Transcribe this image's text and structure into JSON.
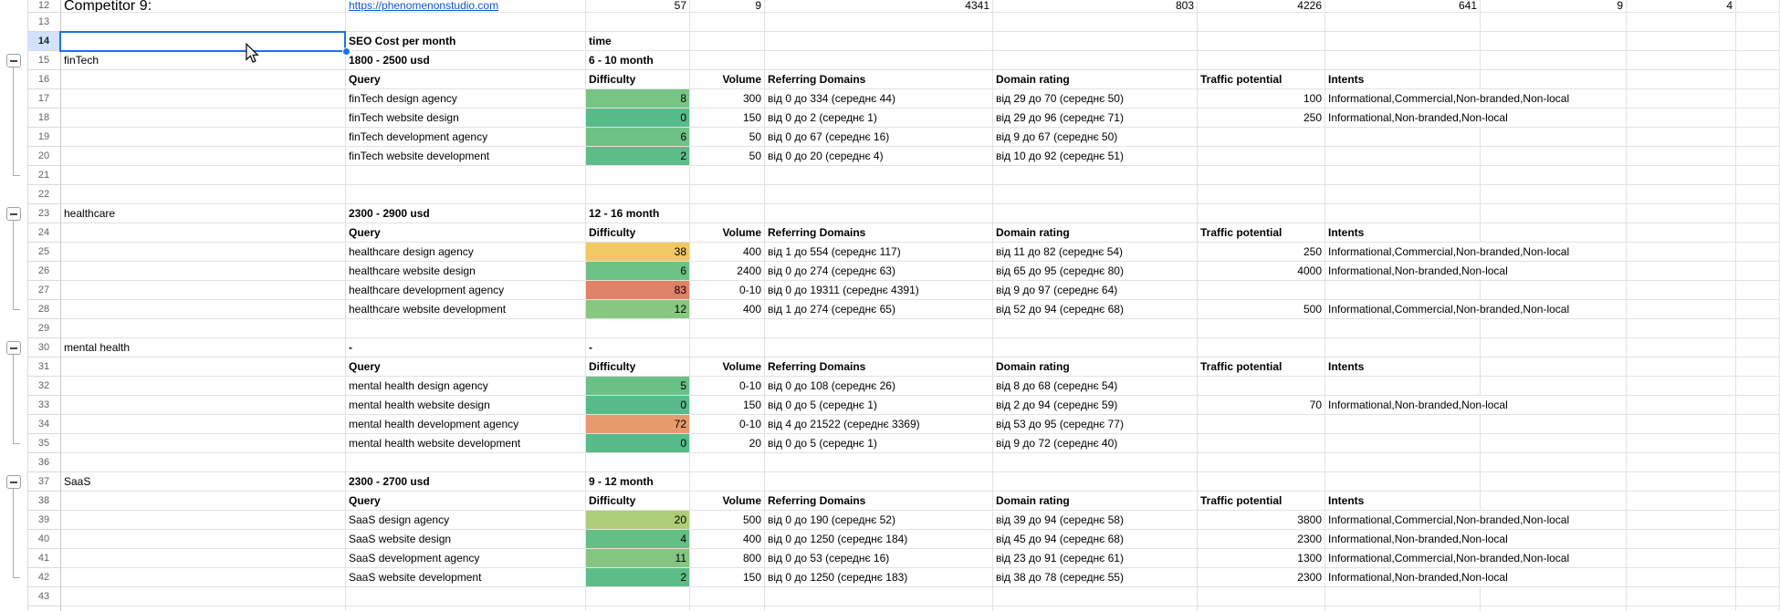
{
  "sheet": {
    "selected_row": 14,
    "selection": {
      "row": 14,
      "col": "a"
    },
    "colors": {
      "selection_blue": "#1a73e8",
      "selected_row_header_bg": "#d3e3fd",
      "link": "#1155cc",
      "gridline": "#e2e2e2",
      "difficulty_low": "#57bb8a",
      "difficulty_mid": "#f1c863",
      "difficulty_high": "#e18165"
    },
    "groups": [
      {
        "start": 15,
        "end": 21
      },
      {
        "start": 23,
        "end": 28
      },
      {
        "start": 30,
        "end": 35
      },
      {
        "start": 37,
        "end": 42
      }
    ],
    "rows": [
      {
        "n": 12,
        "clip": true,
        "cells": [
          {
            "c": "a",
            "t": "Competitor 9:",
            "lg": 1
          },
          {
            "c": "b",
            "t": "https://phenomenonstudio.com",
            "ln": 1
          },
          {
            "c": "c",
            "t": "57",
            "r": 1
          },
          {
            "c": "d",
            "t": "9",
            "r": 1
          },
          {
            "c": "e",
            "t": "4341",
            "r": 1
          },
          {
            "c": "f",
            "t": "803",
            "r": 1
          },
          {
            "c": "g",
            "t": "4226",
            "r": 1
          },
          {
            "c": "h",
            "t": "641",
            "r": 1
          },
          {
            "c": "i",
            "t": "9",
            "r": 1
          },
          {
            "c": "j",
            "t": "4",
            "r": 1
          }
        ]
      },
      {
        "n": 13,
        "cells": []
      },
      {
        "n": 14,
        "cells": [
          {
            "c": "b",
            "t": "SEO Cost per month",
            "b": 1
          },
          {
            "c": "c",
            "t": "time",
            "b": 1
          }
        ]
      },
      {
        "n": 15,
        "cells": [
          {
            "c": "a",
            "t": "finTech"
          },
          {
            "c": "b",
            "t": "1800 - 2500 usd",
            "b": 1
          },
          {
            "c": "c",
            "t": "6 - 10 month",
            "b": 1
          }
        ]
      },
      {
        "n": 16,
        "cells": [
          {
            "c": "b",
            "t": "Query",
            "b": 1
          },
          {
            "c": "c",
            "t": "Difficulty",
            "b": 1
          },
          {
            "c": "d",
            "t": "Volume",
            "b": 1,
            "r": 1
          },
          {
            "c": "e",
            "t": "Referring Domains",
            "b": 1
          },
          {
            "c": "f",
            "t": "Domain rating",
            "b": 1
          },
          {
            "c": "g",
            "t": "Traffic potential",
            "b": 1
          },
          {
            "c": "h",
            "t": "Intents",
            "b": 1
          }
        ]
      },
      {
        "n": 17,
        "cells": [
          {
            "c": "b",
            "t": "finTech design agency"
          },
          {
            "c": "c",
            "t": "8",
            "r": 1,
            "bg": "#76c484"
          },
          {
            "c": "d",
            "t": "300",
            "r": 1
          },
          {
            "c": "e",
            "t": "від 0 до 334 (середнє 44)"
          },
          {
            "c": "f",
            "t": "від 29 до 70 (середнє 50)"
          },
          {
            "c": "g",
            "t": "100",
            "r": 1
          },
          {
            "c": "h",
            "t": "Informational,Commercial,Non-branded,Non-local",
            "sp": 2
          }
        ]
      },
      {
        "n": 18,
        "cells": [
          {
            "c": "b",
            "t": "finTech website design"
          },
          {
            "c": "c",
            "t": "0",
            "r": 1,
            "bg": "#57bb8a"
          },
          {
            "c": "d",
            "t": "150",
            "r": 1
          },
          {
            "c": "e",
            "t": "від 0 до 2 (середнє 1)"
          },
          {
            "c": "f",
            "t": "від 29 до 96 (середнє 71)"
          },
          {
            "c": "g",
            "t": "250",
            "r": 1
          },
          {
            "c": "h",
            "t": "Informational,Non-branded,Non-local",
            "sp": 2
          }
        ]
      },
      {
        "n": 19,
        "cells": [
          {
            "c": "b",
            "t": "finTech development agency"
          },
          {
            "c": "c",
            "t": "6",
            "r": 1,
            "bg": "#6fc285"
          },
          {
            "c": "d",
            "t": "50",
            "r": 1
          },
          {
            "c": "e",
            "t": "від 0 до 67 (середнє 16)"
          },
          {
            "c": "f",
            "t": "від 9 до 67 (середнє 50)"
          }
        ]
      },
      {
        "n": 20,
        "cells": [
          {
            "c": "b",
            "t": "finTech website development"
          },
          {
            "c": "c",
            "t": "2",
            "r": 1,
            "bg": "#5dbd88"
          },
          {
            "c": "d",
            "t": "50",
            "r": 1
          },
          {
            "c": "e",
            "t": "від 0 до 20 (середнє 4)"
          },
          {
            "c": "f",
            "t": "від 10 до 92 (середнє 51)"
          }
        ]
      },
      {
        "n": 21,
        "cells": []
      },
      {
        "n": 22,
        "cells": []
      },
      {
        "n": 23,
        "cells": [
          {
            "c": "a",
            "t": "healthcare"
          },
          {
            "c": "b",
            "t": "2300 - 2900 usd",
            "b": 1
          },
          {
            "c": "c",
            "t": "12 - 16 month",
            "b": 1
          }
        ]
      },
      {
        "n": 24,
        "cells": [
          {
            "c": "b",
            "t": "Query",
            "b": 1
          },
          {
            "c": "c",
            "t": "Difficulty",
            "b": 1
          },
          {
            "c": "d",
            "t": "Volume",
            "b": 1,
            "r": 1
          },
          {
            "c": "e",
            "t": "Referring Domains",
            "b": 1
          },
          {
            "c": "f",
            "t": "Domain rating",
            "b": 1
          },
          {
            "c": "g",
            "t": "Traffic potential",
            "b": 1
          },
          {
            "c": "h",
            "t": "Intents",
            "b": 1
          }
        ]
      },
      {
        "n": 25,
        "cells": [
          {
            "c": "b",
            "t": "healthcare design agency"
          },
          {
            "c": "c",
            "t": "38",
            "r": 1,
            "bg": "#f1c863"
          },
          {
            "c": "d",
            "t": "400",
            "r": 1
          },
          {
            "c": "e",
            "t": "від 1 до 554 (середнє 117)"
          },
          {
            "c": "f",
            "t": "від 11 до 82 (середнє 54)"
          },
          {
            "c": "g",
            "t": "250",
            "r": 1
          },
          {
            "c": "h",
            "t": "Informational,Commercial,Non-branded,Non-local",
            "sp": 2
          }
        ]
      },
      {
        "n": 26,
        "cells": [
          {
            "c": "b",
            "t": "healthcare website design"
          },
          {
            "c": "c",
            "t": "6",
            "r": 1,
            "bg": "#6fc285"
          },
          {
            "c": "d",
            "t": "2400",
            "r": 1
          },
          {
            "c": "e",
            "t": "від 0 до 274 (середнє 63)"
          },
          {
            "c": "f",
            "t": "від 65 до 95 (середнє 80)"
          },
          {
            "c": "g",
            "t": "4000",
            "r": 1
          },
          {
            "c": "h",
            "t": "Informational,Non-branded,Non-local",
            "sp": 2
          }
        ]
      },
      {
        "n": 27,
        "cells": [
          {
            "c": "b",
            "t": "healthcare development agency"
          },
          {
            "c": "c",
            "t": "83",
            "r": 1,
            "bg": "#e18165"
          },
          {
            "c": "d",
            "t": "0-10",
            "r": 1
          },
          {
            "c": "e",
            "t": "від 0 до 19311 (середнє 4391)"
          },
          {
            "c": "f",
            "t": "від 9 до 97 (середнє 64)"
          }
        ]
      },
      {
        "n": 28,
        "cells": [
          {
            "c": "b",
            "t": "healthcare website development"
          },
          {
            "c": "c",
            "t": "12",
            "r": 1,
            "bg": "#87c77f"
          },
          {
            "c": "d",
            "t": "400",
            "r": 1
          },
          {
            "c": "e",
            "t": "від 1 до 274 (середнє 65)"
          },
          {
            "c": "f",
            "t": "від 52 до 94 (середнє 68)"
          },
          {
            "c": "g",
            "t": "500",
            "r": 1
          },
          {
            "c": "h",
            "t": "Informational,Commercial,Non-branded,Non-local",
            "sp": 2
          }
        ]
      },
      {
        "n": 29,
        "cells": []
      },
      {
        "n": 30,
        "cells": [
          {
            "c": "a",
            "t": "mental health"
          },
          {
            "c": "b",
            "t": "-",
            "b": 1
          },
          {
            "c": "c",
            "t": "-",
            "b": 1
          }
        ]
      },
      {
        "n": 31,
        "cells": [
          {
            "c": "b",
            "t": "Query",
            "b": 1
          },
          {
            "c": "c",
            "t": "Difficulty",
            "b": 1
          },
          {
            "c": "d",
            "t": "Volume",
            "b": 1,
            "r": 1
          },
          {
            "c": "e",
            "t": "Referring Domains",
            "b": 1
          },
          {
            "c": "f",
            "t": "Domain rating",
            "b": 1
          },
          {
            "c": "g",
            "t": "Traffic potential",
            "b": 1
          },
          {
            "c": "h",
            "t": "Intents",
            "b": 1
          }
        ]
      },
      {
        "n": 32,
        "cells": [
          {
            "c": "b",
            "t": "mental health design agency"
          },
          {
            "c": "c",
            "t": "5",
            "r": 1,
            "bg": "#6ac087"
          },
          {
            "c": "d",
            "t": "0-10",
            "r": 1
          },
          {
            "c": "e",
            "t": "від 0 до 108 (середнє 26)"
          },
          {
            "c": "f",
            "t": "від 8 до 68 (середнє 54)"
          }
        ]
      },
      {
        "n": 33,
        "cells": [
          {
            "c": "b",
            "t": "mental health website design"
          },
          {
            "c": "c",
            "t": "0",
            "r": 1,
            "bg": "#57bb8a"
          },
          {
            "c": "d",
            "t": "150",
            "r": 1
          },
          {
            "c": "e",
            "t": "від 0 до 5 (середнє 1)"
          },
          {
            "c": "f",
            "t": "від 2 до 94 (середнє 59)"
          },
          {
            "c": "g",
            "t": "70",
            "r": 1
          },
          {
            "c": "h",
            "t": "Informational,Non-branded,Non-local",
            "sp": 2
          }
        ]
      },
      {
        "n": 34,
        "cells": [
          {
            "c": "b",
            "t": "mental health development agency"
          },
          {
            "c": "c",
            "t": "72",
            "r": 1,
            "bg": "#e69a6e"
          },
          {
            "c": "d",
            "t": "0-10",
            "r": 1
          },
          {
            "c": "e",
            "t": "від 4 до 21522 (середнє 3369)"
          },
          {
            "c": "f",
            "t": "від 53 до 95 (середнє 77)"
          }
        ]
      },
      {
        "n": 35,
        "cells": [
          {
            "c": "b",
            "t": "mental health website development"
          },
          {
            "c": "c",
            "t": "0",
            "r": 1,
            "bg": "#57bb8a"
          },
          {
            "c": "d",
            "t": "20",
            "r": 1
          },
          {
            "c": "e",
            "t": "від 0 до 5 (середнє 1)"
          },
          {
            "c": "f",
            "t": "від 9 до 72 (середнє 40)"
          }
        ]
      },
      {
        "n": 36,
        "cells": []
      },
      {
        "n": 37,
        "cells": [
          {
            "c": "a",
            "t": "SaaS"
          },
          {
            "c": "b",
            "t": "2300 - 2700 usd",
            "b": 1
          },
          {
            "c": "c",
            "t": "9 - 12 month",
            "b": 1
          }
        ]
      },
      {
        "n": 38,
        "cells": [
          {
            "c": "b",
            "t": "Query",
            "b": 1
          },
          {
            "c": "c",
            "t": "Difficulty",
            "b": 1
          },
          {
            "c": "d",
            "t": "Volume",
            "b": 1,
            "r": 1
          },
          {
            "c": "e",
            "t": "Referring Domains",
            "b": 1
          },
          {
            "c": "f",
            "t": "Domain rating",
            "b": 1
          },
          {
            "c": "g",
            "t": "Traffic potential",
            "b": 1
          },
          {
            "c": "h",
            "t": "Intents",
            "b": 1
          }
        ]
      },
      {
        "n": 39,
        "cells": [
          {
            "c": "b",
            "t": "SaaS design agency"
          },
          {
            "c": "c",
            "t": "20",
            "r": 1,
            "bg": "#aecd77"
          },
          {
            "c": "d",
            "t": "500",
            "r": 1
          },
          {
            "c": "e",
            "t": "від 0 до 190 (середнє 52)"
          },
          {
            "c": "f",
            "t": "від 39 до 94 (середнє 58)"
          },
          {
            "c": "g",
            "t": "3800",
            "r": 1
          },
          {
            "c": "h",
            "t": "Informational,Commercial,Non-branded,Non-local",
            "sp": 2
          }
        ]
      },
      {
        "n": 40,
        "cells": [
          {
            "c": "b",
            "t": "SaaS website design"
          },
          {
            "c": "c",
            "t": "4",
            "r": 1,
            "bg": "#64bf86"
          },
          {
            "c": "d",
            "t": "400",
            "r": 1
          },
          {
            "c": "e",
            "t": "від 0 до 1250 (середнє 184)"
          },
          {
            "c": "f",
            "t": "від 45 до 94 (середнє 68)"
          },
          {
            "c": "g",
            "t": "2300",
            "r": 1
          },
          {
            "c": "h",
            "t": "Informational,Non-branded,Non-local",
            "sp": 2
          }
        ]
      },
      {
        "n": 41,
        "cells": [
          {
            "c": "b",
            "t": "SaaS development agency"
          },
          {
            "c": "c",
            "t": "11",
            "r": 1,
            "bg": "#83c680"
          },
          {
            "c": "d",
            "t": "800",
            "r": 1
          },
          {
            "c": "e",
            "t": "від 0 до 53 (середнє 16)"
          },
          {
            "c": "f",
            "t": "від 23 до 91 (середнє 61)"
          },
          {
            "c": "g",
            "t": "1300",
            "r": 1
          },
          {
            "c": "h",
            "t": "Informational,Commercial,Non-branded,Non-local",
            "sp": 2
          }
        ]
      },
      {
        "n": 42,
        "cells": [
          {
            "c": "b",
            "t": "SaaS website development"
          },
          {
            "c": "c",
            "t": "2",
            "r": 1,
            "bg": "#5dbd88"
          },
          {
            "c": "d",
            "t": "150",
            "r": 1
          },
          {
            "c": "e",
            "t": "від 0 до 1250 (середнє 183)"
          },
          {
            "c": "f",
            "t": "від 38 до 78 (середнє 55)"
          },
          {
            "c": "g",
            "t": "2300",
            "r": 1
          },
          {
            "c": "h",
            "t": "Informational,Non-branded,Non-local",
            "sp": 2
          }
        ]
      },
      {
        "n": 43,
        "cells": []
      },
      {
        "n": 44,
        "cells": []
      }
    ]
  }
}
